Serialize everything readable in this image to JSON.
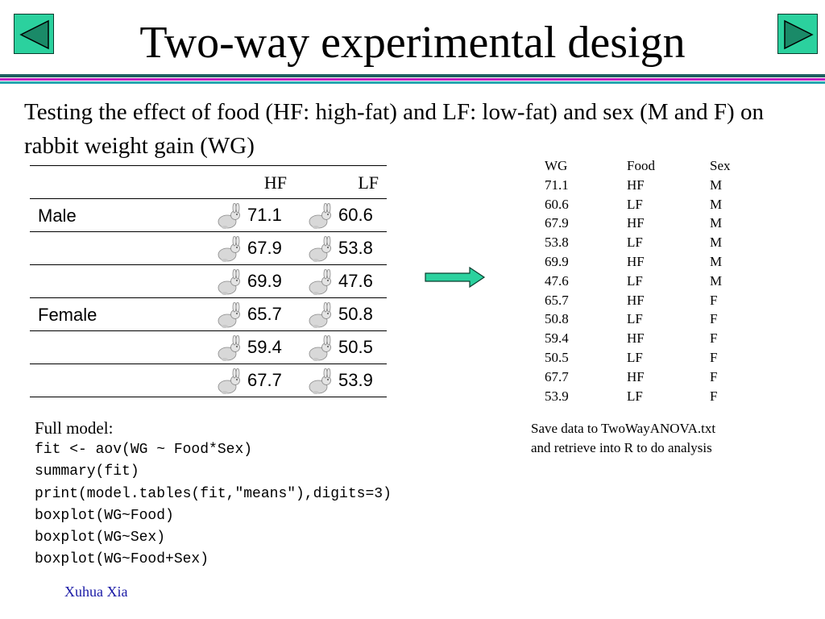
{
  "title": "Two-way experimental design",
  "nav": {
    "prev_icon": "triangle-left-icon",
    "next_icon": "triangle-right-icon",
    "button_color": "#2bd19e"
  },
  "intro": "Testing the effect of food (HF: high-fat) and LF: low-fat) and sex (M and F) on rabbit weight gain (WG)",
  "design_table": {
    "headers": [
      "HF",
      "LF"
    ],
    "rows": [
      {
        "sex": "Male",
        "hf": "71.1",
        "lf": "60.6"
      },
      {
        "sex": "",
        "hf": "67.9",
        "lf": "53.8"
      },
      {
        "sex": "",
        "hf": "69.9",
        "lf": "47.6"
      },
      {
        "sex": "Female",
        "hf": "65.7",
        "lf": "50.8"
      },
      {
        "sex": "",
        "hf": "59.4",
        "lf": "50.5"
      },
      {
        "sex": "",
        "hf": "67.7",
        "lf": "53.9"
      }
    ],
    "icon": "rabbit-icon"
  },
  "arrow_icon": "arrow-right-icon",
  "listing": {
    "headers": [
      "WG",
      "Food",
      "Sex"
    ],
    "rows": [
      [
        "71.1",
        "HF",
        "M"
      ],
      [
        "60.6",
        "LF",
        "M"
      ],
      [
        "67.9",
        "HF",
        "M"
      ],
      [
        "53.8",
        "LF",
        "M"
      ],
      [
        "69.9",
        "HF",
        "M"
      ],
      [
        "47.6",
        "LF",
        "M"
      ],
      [
        "65.7",
        "HF",
        "F"
      ],
      [
        "50.8",
        "LF",
        "F"
      ],
      [
        "59.4",
        "HF",
        "F"
      ],
      [
        "50.5",
        "LF",
        "F"
      ],
      [
        "67.7",
        "HF",
        "F"
      ],
      [
        "53.9",
        "LF",
        "F"
      ]
    ]
  },
  "note_lines": [
    "Save data to TwoWayANOVA.txt",
    "and retrieve into R to do analysis"
  ],
  "model_label": "Full model:",
  "code_lines": [
    "fit <- aov(WG ~ Food*Sex)",
    "summary(fit)",
    "print(model.tables(fit,\"means\"),digits=3)",
    "boxplot(WG~Food)",
    "boxplot(WG~Sex)",
    "boxplot(WG~Food+Sex)"
  ],
  "author": "Xuhua Xia"
}
